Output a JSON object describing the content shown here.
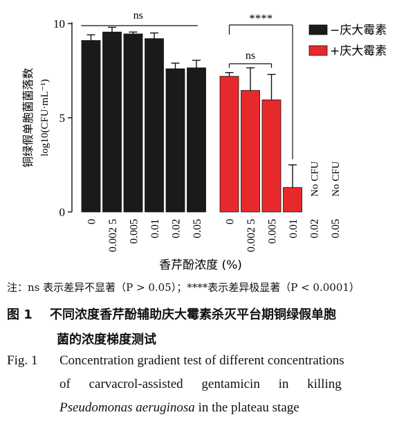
{
  "chart_data": {
    "type": "bar",
    "ylabel_cn": "铜绿假单胞菌菌落数",
    "ylabel_unit": "log10(CFU·mL⁻¹)",
    "xlabel": "香芹酚浓度 (%)",
    "ylim": [
      0,
      10
    ],
    "yticks": [
      0,
      5,
      10
    ],
    "legend_position": "top-right",
    "series": [
      {
        "name": "−庆大霉素",
        "color": "#1a1a1a",
        "categories": [
          "0",
          "0.002 5",
          "0.005",
          "0.01",
          "0.02",
          "0.05"
        ],
        "values": [
          9.1,
          9.55,
          9.45,
          9.2,
          7.6,
          7.65
        ],
        "errors": [
          0.3,
          0.25,
          0.1,
          0.3,
          0.3,
          0.4
        ]
      },
      {
        "name": "+庆大霉素",
        "color": "#e8292b",
        "categories": [
          "0",
          "0.002 5",
          "0.005",
          "0.01",
          "0.02",
          "0.05"
        ],
        "values": [
          7.2,
          6.45,
          5.95,
          1.3,
          null,
          null
        ],
        "errors": [
          0.2,
          1.2,
          1.35,
          1.2,
          null,
          null
        ],
        "no_growth_label": "No CFU"
      }
    ],
    "annotations": [
      {
        "text": "ns",
        "between": "all −庆大霉素 bars"
      },
      {
        "text": "ns",
        "between": "+庆大霉素 0 to 0.005"
      },
      {
        "text": "****",
        "between": "+庆大霉素 0 vs 0.01"
      }
    ]
  },
  "note": "注：ns 表示差异不显著（P > 0.05）；****表示差异极显著（P < 0.0001）",
  "figure_cn": {
    "number": "图 1",
    "title_line1": "不同浓度香芹酚辅助庆大霉素杀灭平台期铜绿假单胞",
    "title_line2": "菌的浓度梯度测试"
  },
  "figure_en": {
    "number": "Fig. 1",
    "line1": "Concentration gradient test of different concentrations",
    "line2": "of   carvacrol-assisted   gentamicin   in   killing",
    "line3_italic": "Pseudomonas aeruginosa",
    "line3_rest": " in the plateau stage"
  }
}
